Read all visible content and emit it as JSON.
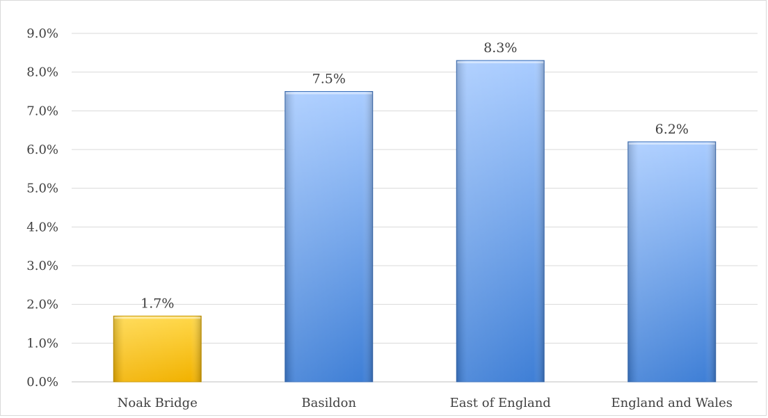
{
  "chart_data": {
    "type": "bar",
    "categories": [
      "Noak Bridge",
      "Basildon",
      "East of England",
      "England and Wales"
    ],
    "values": [
      1.7,
      7.5,
      8.3,
      6.2
    ],
    "value_format": "percent_one_decimal",
    "data_labels": [
      "1.7%",
      "7.5%",
      "8.3%",
      "6.2%"
    ],
    "y_ticks": [
      "0.0%",
      "1.0%",
      "2.0%",
      "3.0%",
      "4.0%",
      "5.0%",
      "6.0%",
      "7.0%",
      "8.0%",
      "9.0%"
    ],
    "ylim": [
      0,
      9
    ],
    "grid": true,
    "legend": "none",
    "title": "",
    "xlabel": "",
    "ylabel": "",
    "colors": {
      "highlight_top": "#ffd84a",
      "highlight_bottom": "#f2b200",
      "bar_top": "#a9ccff",
      "bar_bottom": "#3f7fd6",
      "gridline": "#d9d9d9",
      "axis": "#bfbfbf"
    },
    "highlight_index": 0
  }
}
